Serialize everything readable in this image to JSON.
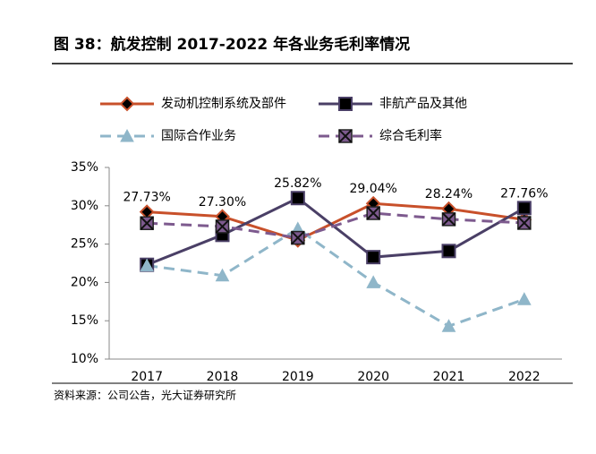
{
  "chart_data": {
    "type": "line",
    "title": "图 38：航发控制 2017-2022 年各业务毛利率情况",
    "source": "资料来源：公司公告，光大证券研究所",
    "categories": [
      "2017",
      "2018",
      "2019",
      "2020",
      "2021",
      "2022"
    ],
    "ylim": [
      10,
      35
    ],
    "yticks": [
      {
        "value": 10,
        "label": "10%"
      },
      {
        "value": 15,
        "label": "15%"
      },
      {
        "value": 20,
        "label": "20%"
      },
      {
        "value": 25,
        "label": "25%"
      },
      {
        "value": 30,
        "label": "30%"
      },
      {
        "value": 35,
        "label": "35%"
      }
    ],
    "grid": false,
    "series": [
      {
        "name": "发动机控制系统及部件",
        "color": "#c8502a",
        "marker": "diamond",
        "dashed": false,
        "values": [
          29.2,
          28.6,
          25.5,
          30.3,
          29.6,
          28.2
        ]
      },
      {
        "name": "非航产品及其他",
        "color": "#4a3f66",
        "marker": "square",
        "dashed": false,
        "values": [
          22.3,
          26.2,
          31.0,
          23.3,
          24.1,
          29.7
        ]
      },
      {
        "name": "国际合作业务",
        "color": "#8fb6c9",
        "marker": "triangle",
        "dashed": true,
        "values": [
          22.2,
          20.9,
          27.0,
          20.0,
          14.3,
          17.8
        ]
      },
      {
        "name": "综合毛利率",
        "color": "#7d5a8e",
        "marker": "xsquare",
        "dashed": true,
        "values": [
          27.73,
          27.3,
          25.82,
          29.04,
          28.24,
          27.76
        ],
        "value_labels": [
          "27.73%",
          "27.30%",
          "25.82%",
          "29.04%",
          "28.24%",
          "27.76%"
        ]
      }
    ]
  }
}
